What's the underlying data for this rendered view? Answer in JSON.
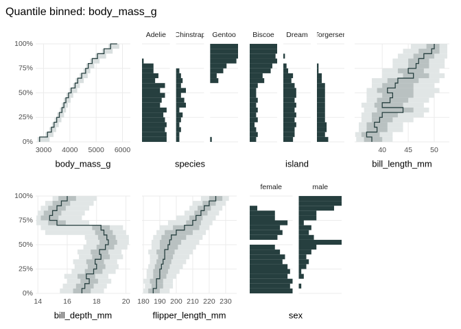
{
  "title": "Quantile binned: body_mass_g",
  "bins": [
    0,
    5,
    10,
    15,
    20,
    25,
    30,
    35,
    40,
    45,
    50,
    55,
    60,
    65,
    70,
    75,
    80,
    85,
    90,
    95,
    100
  ],
  "chart_data": [
    {
      "type": "quantile-line",
      "x_label": "body_mass_g",
      "xlim": [
        2700,
        6300
      ],
      "xticks": [
        3000,
        4000,
        5000,
        6000
      ],
      "ylim": [
        0,
        100
      ],
      "ytick_labels": true,
      "yticks": [
        {
          "value": 0,
          "label": "0%"
        },
        {
          "value": 25,
          "label": "25%"
        },
        {
          "value": 50,
          "label": "50%"
        },
        {
          "value": 75,
          "label": "75%"
        },
        {
          "value": 100,
          "label": "100%"
        }
      ],
      "color": "#263f3f",
      "band_color": "#d9dfdf",
      "quantiles": [
        2850,
        3150,
        3300,
        3400,
        3500,
        3600,
        3700,
        3775,
        3850,
        3950,
        4050,
        4200,
        4300,
        4450,
        4600,
        4700,
        4850,
        5050,
        5300,
        5550,
        5800
      ]
    },
    {
      "type": "facet-bar",
      "x_label": "species",
      "xlim": [
        0,
        17
      ],
      "ylim": [
        0,
        100
      ],
      "yticks": [
        0,
        25,
        50,
        75,
        100
      ],
      "ytick_labels": false,
      "color": "#263f3f",
      "facets": [
        {
          "name": "Adelie",
          "values": [
            15,
            15,
            14,
            15,
            14,
            13,
            15,
            11,
            12,
            14,
            11,
            14,
            8,
            10,
            7,
            7,
            1,
            0,
            0,
            0
          ]
        },
        {
          "name": "Chinstrap",
          "values": [
            2,
            2,
            3,
            2,
            3,
            4,
            2,
            6,
            5,
            3,
            6,
            3,
            4,
            3,
            2,
            0,
            0,
            0,
            0,
            0
          ]
        },
        {
          "name": "Gentoo",
          "values": [
            1,
            0,
            0,
            0,
            0,
            0,
            0,
            0,
            0,
            0,
            0,
            0,
            5,
            4,
            8,
            10,
            16,
            17,
            17,
            17
          ]
        }
      ]
    },
    {
      "type": "facet-bar",
      "x_label": "island",
      "xlim": [
        0,
        17
      ],
      "ylim": [
        0,
        100
      ],
      "yticks": [
        0,
        25,
        50,
        75,
        100
      ],
      "ytick_labels": false,
      "color": "#263f3f",
      "facets": [
        {
          "name": "Biscoe",
          "values": [
            4,
            5,
            4,
            3,
            5,
            4,
            5,
            4,
            5,
            4,
            4,
            5,
            9,
            8,
            13,
            14,
            17,
            16,
            17,
            17
          ]
        },
        {
          "name": "Dream",
          "values": [
            6,
            7,
            7,
            8,
            7,
            8,
            7,
            8,
            7,
            8,
            8,
            7,
            5,
            6,
            3,
            2,
            0,
            1,
            0,
            0
          ]
        },
        {
          "name": "Torgersen",
          "values": [
            7,
            5,
            6,
            6,
            5,
            5,
            5,
            5,
            5,
            5,
            5,
            5,
            3,
            3,
            1,
            1,
            0,
            0,
            0,
            0
          ]
        }
      ]
    },
    {
      "type": "quantile-band",
      "x_label": "bill_length_mm",
      "xlim": [
        34.7,
        52.9
      ],
      "xticks": [
        40,
        45,
        50
      ],
      "ylim": [
        0,
        100
      ],
      "yticks": [
        0,
        25,
        50,
        75,
        100
      ],
      "ytick_labels": false,
      "color": "#263f3f",
      "band_colors": [
        "#e1e6e6",
        "#b9c1c1"
      ],
      "median": [
        38,
        37,
        39,
        38.5,
        39.5,
        40,
        44,
        40,
        41.5,
        42,
        41,
        42.5,
        43,
        46,
        45,
        46.5,
        47,
        48,
        49.5,
        50
      ],
      "iqr": [
        [
          36.5,
          40
        ],
        [
          36,
          39.5
        ],
        [
          37,
          41
        ],
        [
          37,
          41
        ],
        [
          38,
          42
        ],
        [
          38,
          43
        ],
        [
          39,
          46
        ],
        [
          38.5,
          44
        ],
        [
          39,
          45
        ],
        [
          40,
          46
        ],
        [
          39,
          46
        ],
        [
          40,
          46
        ],
        [
          41,
          47
        ],
        [
          44,
          49
        ],
        [
          43,
          48
        ],
        [
          45,
          49
        ],
        [
          45,
          49
        ],
        [
          46,
          50
        ],
        [
          47,
          51
        ],
        [
          48.5,
          51
        ]
      ],
      "range": [
        [
          35,
          42
        ],
        [
          34.8,
          42
        ],
        [
          35.5,
          44
        ],
        [
          35.5,
          44
        ],
        [
          36,
          46
        ],
        [
          36,
          48
        ],
        [
          36.5,
          49
        ],
        [
          36,
          48
        ],
        [
          37,
          49
        ],
        [
          37,
          50
        ],
        [
          37,
          51
        ],
        [
          38,
          50
        ],
        [
          38,
          51
        ],
        [
          40,
          52
        ],
        [
          40,
          51
        ],
        [
          42,
          52
        ],
        [
          42,
          52
        ],
        [
          43,
          52.5
        ],
        [
          44,
          52.5
        ],
        [
          45.5,
          52.5
        ]
      ]
    },
    {
      "type": "quantile-band",
      "x_label": "bill_depth_mm",
      "xlim": [
        13.85,
        20.3
      ],
      "xticks": [
        14,
        16,
        18,
        20
      ],
      "ylim": [
        0,
        100
      ],
      "ytick_labels": true,
      "yticks": [
        {
          "value": 0,
          "label": "0%"
        },
        {
          "value": 25,
          "label": "25%"
        },
        {
          "value": 50,
          "label": "50%"
        },
        {
          "value": 75,
          "label": "75%"
        },
        {
          "value": 100,
          "label": "100%"
        }
      ],
      "color": "#263f3f",
      "band_colors": [
        "#e1e6e6",
        "#b9c1c1"
      ],
      "median": [
        17,
        17.2,
        17.5,
        17.3,
        17.8,
        18,
        17.9,
        18.3,
        18.2,
        18.6,
        18.8,
        18.7,
        18.5,
        18.3,
        15.3,
        14.8,
        15,
        15.3,
        15.6,
        16
      ],
      "iqr": [
        [
          16.4,
          17.6
        ],
        [
          16.6,
          17.8
        ],
        [
          16.9,
          18.1
        ],
        [
          16.7,
          17.9
        ],
        [
          17.2,
          18.4
        ],
        [
          17.4,
          18.6
        ],
        [
          17.3,
          18.5
        ],
        [
          17.7,
          18.9
        ],
        [
          17.6,
          18.8
        ],
        [
          18,
          19.2
        ],
        [
          18.2,
          19.4
        ],
        [
          18.1,
          19.3
        ],
        [
          17.9,
          19.1
        ],
        [
          17.7,
          18.9
        ],
        [
          14.7,
          15.9
        ],
        [
          14.2,
          15.4
        ],
        [
          14.4,
          15.6
        ],
        [
          14.7,
          15.9
        ],
        [
          15,
          16.2
        ],
        [
          15.4,
          16.6
        ]
      ],
      "range": [
        [
          15.5,
          18.5
        ],
        [
          15.7,
          18.7
        ],
        [
          16,
          19
        ],
        [
          15.8,
          18.8
        ],
        [
          16.3,
          19.3
        ],
        [
          16.5,
          19.5
        ],
        [
          16.4,
          19.4
        ],
        [
          16.8,
          19.8
        ],
        [
          16.7,
          19.7
        ],
        [
          17.1,
          20.1
        ],
        [
          17.3,
          20.2
        ],
        [
          17.2,
          20.2
        ],
        [
          14.5,
          20
        ],
        [
          14.2,
          19.8
        ],
        [
          13.9,
          17.5
        ],
        [
          13.9,
          17
        ],
        [
          14,
          17.2
        ],
        [
          14.2,
          17.5
        ],
        [
          14.5,
          17.8
        ],
        [
          15,
          18
        ]
      ]
    },
    {
      "type": "quantile-band",
      "x_label": "flipper_length_mm",
      "xlim": [
        179.2,
        236.7
      ],
      "xticks": [
        180,
        190,
        200,
        210,
        220,
        230
      ],
      "ylim": [
        0,
        100
      ],
      "yticks": [
        0,
        25,
        50,
        75,
        100
      ],
      "ytick_labels": false,
      "color": "#263f3f",
      "band_colors": [
        "#e1e6e6",
        "#b9c1c1"
      ],
      "median": [
        186,
        188,
        188,
        190,
        190,
        191,
        192,
        193,
        193,
        195,
        196,
        197,
        200,
        205,
        210,
        212,
        215,
        217,
        220,
        224
      ],
      "iqr": [
        [
          183,
          190
        ],
        [
          185,
          192
        ],
        [
          184,
          192
        ],
        [
          186,
          194
        ],
        [
          186,
          195
        ],
        [
          187,
          196
        ],
        [
          188,
          197
        ],
        [
          189,
          198
        ],
        [
          188,
          199
        ],
        [
          190,
          201
        ],
        [
          190,
          203
        ],
        [
          191,
          206
        ],
        [
          193,
          210
        ],
        [
          198,
          214
        ],
        [
          206,
          215
        ],
        [
          208,
          216
        ],
        [
          211,
          219
        ],
        [
          213,
          221
        ],
        [
          216,
          224
        ],
        [
          220,
          228
        ]
      ],
      "range": [
        [
          180,
          196
        ],
        [
          181,
          198
        ],
        [
          180,
          198
        ],
        [
          182,
          200
        ],
        [
          182,
          202
        ],
        [
          183,
          204
        ],
        [
          184,
          206
        ],
        [
          184,
          208
        ],
        [
          183,
          210
        ],
        [
          185,
          212
        ],
        [
          185,
          214
        ],
        [
          186,
          216
        ],
        [
          188,
          218
        ],
        [
          190,
          220
        ],
        [
          195,
          222
        ],
        [
          200,
          224
        ],
        [
          205,
          226
        ],
        [
          208,
          228
        ],
        [
          210,
          230
        ],
        [
          215,
          232
        ]
      ]
    },
    {
      "type": "facet-bar",
      "x_label": "sex",
      "xlim": [
        0,
        17
      ],
      "ylim": [
        0,
        100
      ],
      "yticks": [
        0,
        25,
        50,
        75,
        100
      ],
      "ytick_labels": false,
      "color": "#263f3f",
      "facets": [
        {
          "name": "female",
          "values": [
            17,
            16,
            17,
            15,
            16,
            15,
            13,
            14,
            12,
            10,
            0,
            11,
            13,
            12,
            15,
            10,
            10,
            3,
            0,
            0
          ]
        },
        {
          "name": "male",
          "values": [
            0,
            1,
            0,
            2,
            1,
            3,
            4,
            3,
            5,
            7,
            17,
            6,
            4,
            5,
            2,
            7,
            7,
            14,
            17,
            17
          ]
        }
      ]
    }
  ]
}
